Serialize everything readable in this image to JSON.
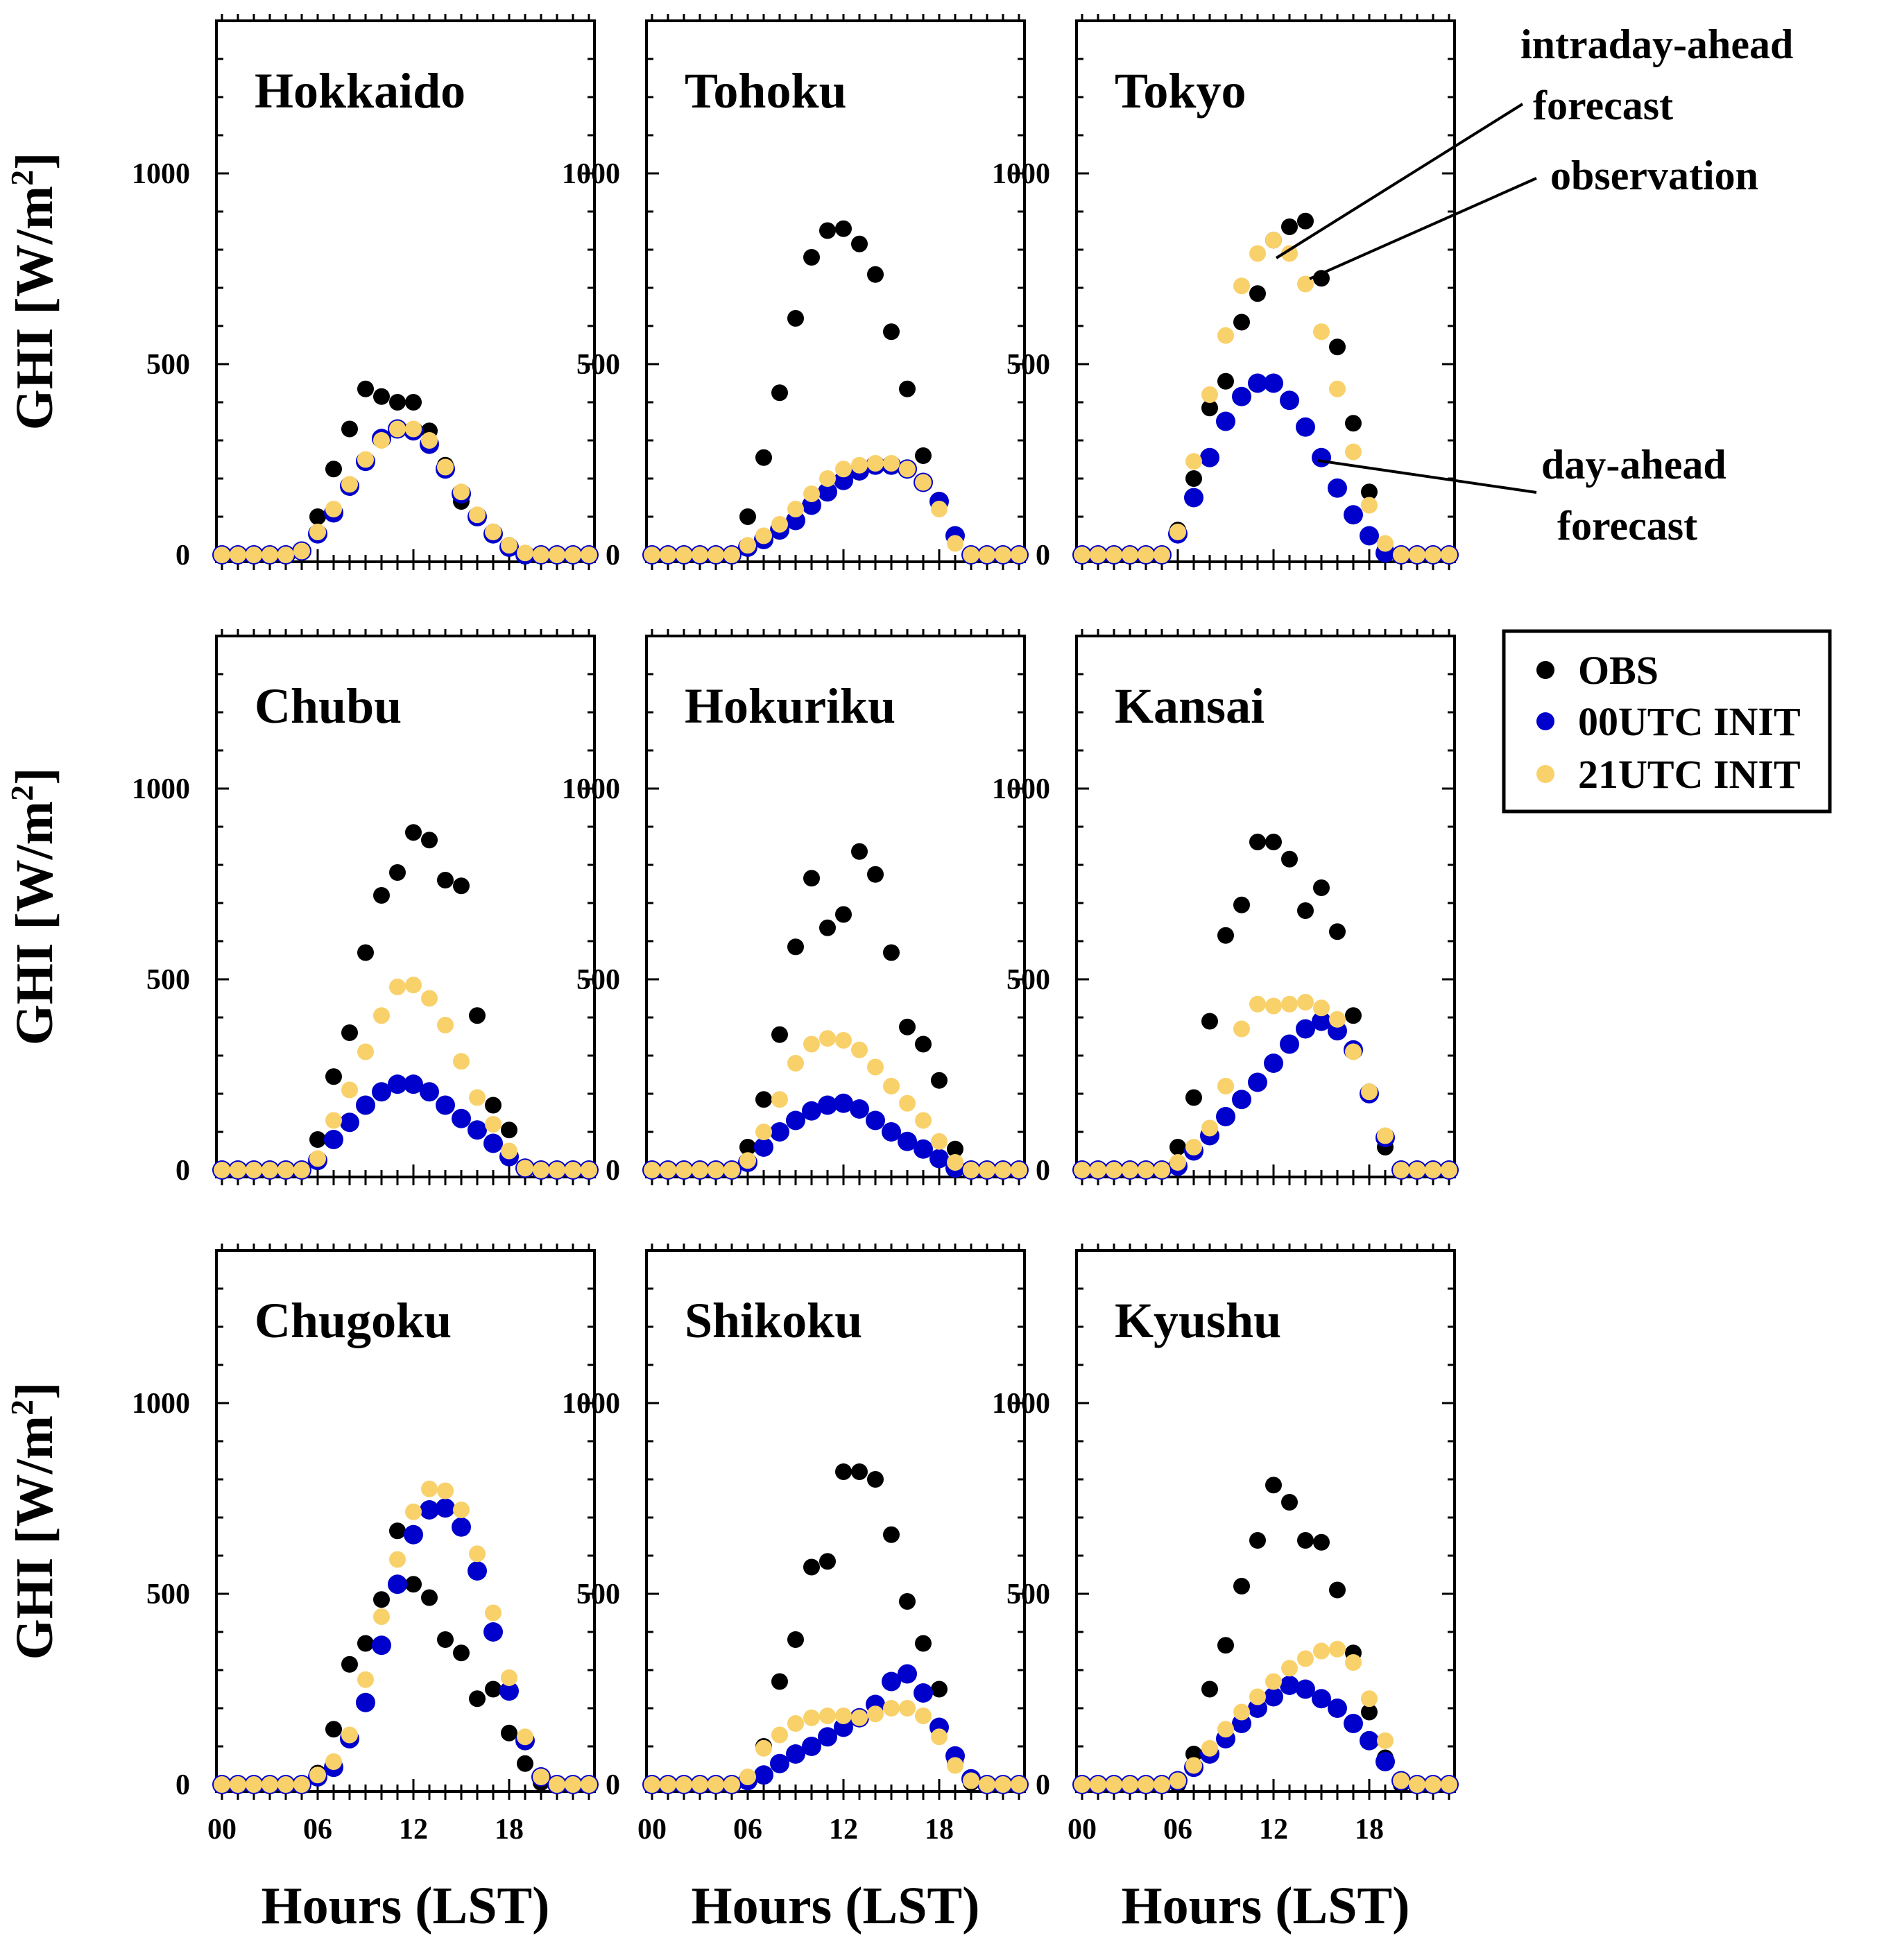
{
  "figure": {
    "ylabel": "GHI [W/m",
    "ylabel_sup": "2",
    "ylabel_close": "]",
    "xlabel": "Hours (LST)"
  },
  "colors": {
    "OBS": "#000000",
    "00UTC INIT": "#0000cc",
    "21UTC INIT": "#f9d16b"
  },
  "legend": {
    "items": [
      {
        "label": "OBS",
        "series": "OBS"
      },
      {
        "label": "00UTC INIT",
        "series": "00UTC INIT"
      },
      {
        "label": "21UTC INIT",
        "series": "21UTC INIT"
      }
    ]
  },
  "annotations": {
    "intraday_line1": "intraday-ahead",
    "intraday_line2": "forecast",
    "observation": "observation",
    "dayahead_line1": "day-ahead",
    "dayahead_line2": "forecast"
  },
  "chart_data": {
    "type": "scatter",
    "layout": "3x3 small multiples",
    "xlabel": "Hours (LST)",
    "ylabel": "GHI [W/m2]",
    "xlim": [
      0,
      23
    ],
    "ylim": [
      0,
      1400
    ],
    "xticks": [
      0,
      6,
      12,
      18
    ],
    "xtick_labels": [
      "00",
      "06",
      "12",
      "18"
    ],
    "yticks": [
      0,
      500,
      1000
    ],
    "ytick_labels": [
      "0",
      "500",
      "1000"
    ],
    "hours": [
      0,
      1,
      2,
      3,
      4,
      5,
      6,
      7,
      8,
      9,
      10,
      11,
      12,
      13,
      14,
      15,
      16,
      17,
      18,
      19,
      20,
      21,
      22,
      23
    ],
    "panels": [
      {
        "title": "Hokkaido",
        "series": [
          {
            "name": "OBS",
            "values": [
              0,
              0,
              0,
              0,
              0,
              10,
              100,
              225,
              330,
              435,
              415,
              400,
              400,
              325,
              235,
              140,
              100,
              60,
              25,
              0,
              0,
              0,
              0,
              0
            ]
          },
          {
            "name": "00UTC INIT",
            "values": [
              0,
              0,
              0,
              0,
              0,
              10,
              55,
              110,
              180,
              245,
              305,
              330,
              325,
              290,
              225,
              160,
              100,
              55,
              20,
              0,
              0,
              0,
              0,
              0
            ]
          },
          {
            "name": "21UTC INIT",
            "values": [
              0,
              0,
              0,
              0,
              0,
              10,
              60,
              120,
              185,
              250,
              300,
              330,
              330,
              300,
              230,
              165,
              105,
              60,
              25,
              5,
              0,
              0,
              0,
              0
            ]
          }
        ]
      },
      {
        "title": "Tohoku",
        "series": [
          {
            "name": "OBS",
            "values": [
              0,
              0,
              0,
              0,
              0,
              0,
              100,
              255,
              425,
              620,
              780,
              850,
              855,
              815,
              735,
              585,
              435,
              260,
              140,
              45,
              0,
              0,
              0,
              0
            ]
          },
          {
            "name": "00UTC INIT",
            "values": [
              0,
              0,
              0,
              0,
              0,
              0,
              20,
              40,
              65,
              90,
              130,
              165,
              195,
              220,
              235,
              235,
              225,
              190,
              140,
              50,
              0,
              0,
              0,
              0
            ]
          },
          {
            "name": "21UTC INIT",
            "values": [
              0,
              0,
              0,
              0,
              0,
              0,
              25,
              50,
              80,
              120,
              160,
              200,
              225,
              235,
              240,
              240,
              225,
              190,
              120,
              30,
              0,
              0,
              0,
              0
            ]
          }
        ]
      },
      {
        "title": "Tokyo",
        "series": [
          {
            "name": "OBS",
            "values": [
              0,
              0,
              0,
              0,
              0,
              0,
              65,
              200,
              385,
              455,
              610,
              685,
              825,
              860,
              875,
              725,
              545,
              345,
              165,
              15,
              0,
              0,
              0,
              0
            ]
          },
          {
            "name": "00UTC INIT",
            "values": [
              0,
              0,
              0,
              0,
              0,
              0,
              55,
              150,
              255,
              350,
              415,
              450,
              450,
              405,
              335,
              255,
              175,
              105,
              50,
              5,
              0,
              0,
              0,
              0
            ]
          },
          {
            "name": "21UTC INIT",
            "values": [
              0,
              0,
              0,
              0,
              0,
              0,
              60,
              245,
              420,
              575,
              705,
              790,
              825,
              790,
              710,
              585,
              435,
              270,
              130,
              30,
              0,
              0,
              0,
              0
            ]
          }
        ]
      },
      {
        "title": "Chubu",
        "series": [
          {
            "name": "OBS",
            "values": [
              0,
              0,
              0,
              0,
              0,
              0,
              80,
              245,
              360,
              570,
              720,
              780,
              885,
              865,
              760,
              745,
              405,
              170,
              105,
              0,
              0,
              0,
              0,
              0
            ]
          },
          {
            "name": "00UTC INIT",
            "values": [
              0,
              0,
              0,
              0,
              0,
              0,
              25,
              80,
              125,
              170,
              205,
              225,
              225,
              205,
              170,
              135,
              105,
              70,
              35,
              5,
              0,
              0,
              0,
              0
            ]
          },
          {
            "name": "21UTC INIT",
            "values": [
              0,
              0,
              0,
              0,
              0,
              0,
              30,
              130,
              210,
              310,
              405,
              480,
              485,
              450,
              380,
              285,
              190,
              120,
              50,
              5,
              0,
              0,
              0,
              0
            ]
          }
        ]
      },
      {
        "title": "Hokuriku",
        "series": [
          {
            "name": "OBS",
            "values": [
              0,
              0,
              0,
              0,
              0,
              0,
              60,
              185,
              355,
              585,
              765,
              635,
              670,
              835,
              775,
              570,
              375,
              330,
              235,
              55,
              0,
              0,
              0,
              0
            ]
          },
          {
            "name": "00UTC INIT",
            "values": [
              0,
              0,
              0,
              0,
              0,
              0,
              20,
              60,
              100,
              130,
              155,
              170,
              175,
              160,
              130,
              100,
              75,
              55,
              30,
              5,
              0,
              0,
              0,
              0
            ]
          },
          {
            "name": "21UTC INIT",
            "values": [
              0,
              0,
              0,
              0,
              0,
              0,
              25,
              100,
              185,
              280,
              330,
              345,
              340,
              315,
              270,
              220,
              175,
              130,
              75,
              20,
              0,
              0,
              0,
              0
            ]
          }
        ]
      },
      {
        "title": "Kansai",
        "series": [
          {
            "name": "OBS",
            "values": [
              0,
              0,
              0,
              0,
              0,
              0,
              60,
              190,
              390,
              615,
              695,
              860,
              860,
              815,
              680,
              740,
              625,
              405,
              205,
              60,
              0,
              0,
              0,
              0
            ]
          },
          {
            "name": "00UTC INIT",
            "values": [
              0,
              0,
              0,
              0,
              0,
              0,
              10,
              50,
              90,
              140,
              185,
              230,
              280,
              330,
              370,
              390,
              365,
              315,
              200,
              85,
              0,
              0,
              0,
              0
            ]
          },
          {
            "name": "21UTC INIT",
            "values": [
              0,
              0,
              0,
              0,
              0,
              0,
              20,
              60,
              110,
              220,
              370,
              435,
              430,
              435,
              440,
              425,
              395,
              310,
              205,
              90,
              0,
              0,
              0,
              0
            ]
          }
        ]
      },
      {
        "title": "Chugoku",
        "series": [
          {
            "name": "OBS",
            "values": [
              0,
              0,
              0,
              0,
              0,
              0,
              30,
              145,
              315,
              370,
              485,
              665,
              525,
              490,
              380,
              345,
              225,
              250,
              135,
              55,
              5,
              0,
              0,
              0
            ]
          },
          {
            "name": "00UTC INIT",
            "values": [
              0,
              0,
              0,
              0,
              0,
              0,
              20,
              45,
              120,
              215,
              365,
              525,
              655,
              720,
              725,
              675,
              560,
              400,
              245,
              115,
              20,
              0,
              0,
              0
            ]
          },
          {
            "name": "21UTC INIT",
            "values": [
              0,
              0,
              0,
              0,
              0,
              0,
              25,
              60,
              130,
              275,
              440,
              590,
              715,
              775,
              770,
              720,
              605,
              450,
              280,
              125,
              20,
              0,
              0,
              0
            ]
          }
        ]
      },
      {
        "title": "Shikoku",
        "series": [
          {
            "name": "OBS",
            "values": [
              0,
              0,
              0,
              0,
              0,
              0,
              10,
              100,
              270,
              380,
              570,
              585,
              820,
              820,
              800,
              655,
              480,
              370,
              250,
              60,
              5,
              0,
              0,
              0
            ]
          },
          {
            "name": "00UTC INIT",
            "values": [
              0,
              0,
              0,
              0,
              0,
              0,
              10,
              25,
              55,
              80,
              100,
              125,
              150,
              175,
              210,
              270,
              290,
              240,
              150,
              75,
              15,
              0,
              0,
              0
            ]
          },
          {
            "name": "21UTC INIT",
            "values": [
              0,
              0,
              0,
              0,
              0,
              0,
              20,
              95,
              130,
              160,
              175,
              180,
              180,
              175,
              185,
              200,
              200,
              180,
              125,
              50,
              10,
              0,
              0,
              0
            ]
          }
        ]
      },
      {
        "title": "Kyushu",
        "series": [
          {
            "name": "OBS",
            "values": [
              0,
              0,
              0,
              0,
              0,
              0,
              0,
              80,
              250,
              365,
              520,
              640,
              785,
              740,
              640,
              635,
              510,
              345,
              190,
              70,
              0,
              0,
              0,
              0
            ]
          },
          {
            "name": "00UTC INIT",
            "values": [
              0,
              0,
              0,
              0,
              0,
              0,
              10,
              45,
              80,
              120,
              160,
              200,
              230,
              260,
              250,
              225,
              200,
              160,
              115,
              60,
              10,
              0,
              0,
              0
            ]
          },
          {
            "name": "21UTC INIT",
            "values": [
              0,
              0,
              0,
              0,
              0,
              0,
              10,
              50,
              95,
              145,
              190,
              230,
              270,
              305,
              330,
              350,
              355,
              320,
              225,
              115,
              10,
              0,
              0,
              0
            ]
          }
        ]
      }
    ]
  }
}
